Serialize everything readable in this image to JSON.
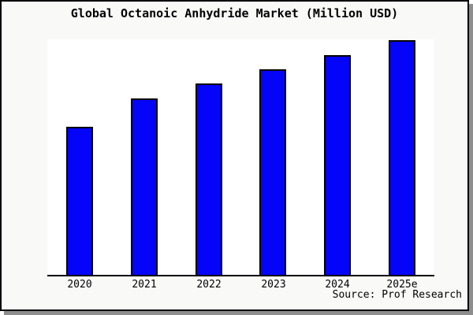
{
  "window": {
    "title": "Global Octanoic Anhydride Market (Million USD)"
  },
  "chart_data": {
    "type": "bar",
    "title": "Global Octanoic Anhydride Market (Million USD)",
    "categories": [
      "2020",
      "2021",
      "2022",
      "2023",
      "2024",
      "2025e"
    ],
    "values": [
      63.0,
      75.3,
      81.7,
      87.7,
      93.7,
      100.0
    ],
    "values_note": "No y-axis or data labels shown in the image; values are relative bar heights in percent of the tallest bar (2025e = 100).",
    "xlabel": "",
    "ylabel": "",
    "ylim": [
      0,
      100
    ],
    "grid": false,
    "legend": null,
    "source": "Source: Prof Research"
  },
  "colors": {
    "bar_fill": "#0404f8",
    "bar_border": "#000000",
    "figure_bg": "#f9f9f8",
    "plot_bg": "#ffffff",
    "figure_border": "#000000",
    "shadow": "#8e8e8e",
    "text": "#000000"
  }
}
